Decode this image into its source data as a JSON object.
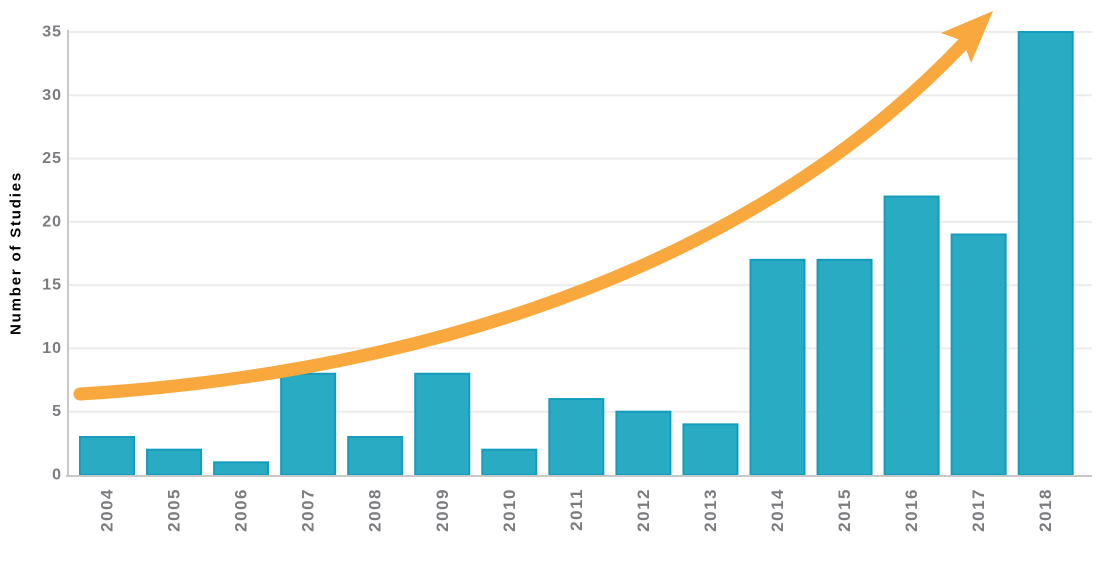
{
  "chart_data": {
    "type": "bar",
    "title": "",
    "xlabel": "",
    "ylabel": "Number of Studies",
    "categories": [
      "2004",
      "2005",
      "2006",
      "2007",
      "2008",
      "2009",
      "2010",
      "2011",
      "2012",
      "2013",
      "2014",
      "2015",
      "2016",
      "2017",
      "2018"
    ],
    "values": [
      3,
      2,
      1,
      8,
      3,
      8,
      2,
      6,
      5,
      4,
      17,
      17,
      22,
      19,
      35
    ],
    "ylim": [
      0,
      35
    ],
    "yticks": [
      0,
      5,
      10,
      15,
      20,
      25,
      30,
      35
    ],
    "grid": "horizontal",
    "legend": "none",
    "annotations": [
      {
        "type": "trend-arrow",
        "description": "curved orange arrow sweeping upward from 2004 to above the 2018 bar, indicating exponential growth in number of studies"
      }
    ],
    "colors": {
      "bar_fill": "#2AABC4",
      "bar_stroke": "#149CBD",
      "arrow": "#F9A83D",
      "gridline": "#ECECEC",
      "axis_line": "#C8C8C8",
      "tick_label": "#7B7C80",
      "background": "#FFFFFF"
    }
  }
}
